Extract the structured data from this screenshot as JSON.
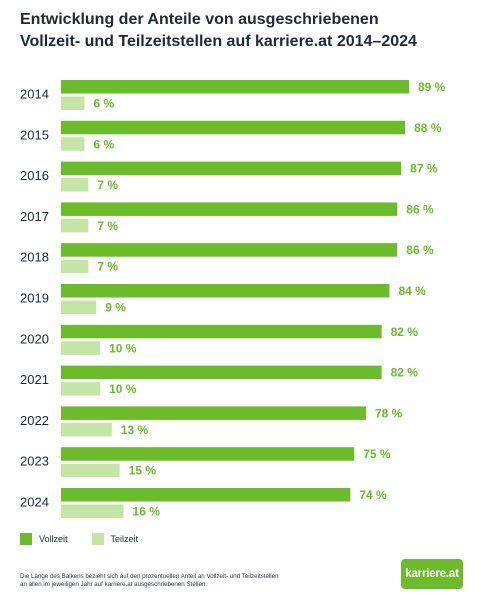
{
  "title_line1": "Entwicklung der Anteile von ausgeschriebenen",
  "title_line2": "Vollzeit- und Teilzeitstellen auf karriere.at 2014–2024",
  "legend": {
    "vollzeit": "Vollzeit",
    "teilzeit": "Teilzeit"
  },
  "footnote_line1": "Die Länge des Balkens bezieht sich auf den prozentuellen Anteil an Vollzeit- und Teilzeitstellen",
  "footnote_line2": "an allen im jeweiligen Jahr auf karriere.at ausgeschriebenen Stellen.",
  "logo_text": "karriere.at",
  "colors": {
    "vollzeit": "#6cbb2a",
    "teilzeit": "#c5e5a6",
    "label": "#6cbb2a"
  },
  "chart_data": {
    "type": "bar",
    "orientation": "horizontal",
    "categories": [
      "2014",
      "2015",
      "2016",
      "2017",
      "2018",
      "2019",
      "2020",
      "2021",
      "2022",
      "2023",
      "2024"
    ],
    "series": [
      {
        "name": "Vollzeit",
        "values": [
          89,
          88,
          87,
          86,
          86,
          84,
          82,
          82,
          78,
          75,
          74
        ]
      },
      {
        "name": "Teilzeit",
        "values": [
          6,
          6,
          7,
          7,
          7,
          9,
          10,
          10,
          13,
          15,
          16
        ]
      }
    ],
    "value_suffix": " %",
    "xlim": [
      0,
      100
    ]
  }
}
